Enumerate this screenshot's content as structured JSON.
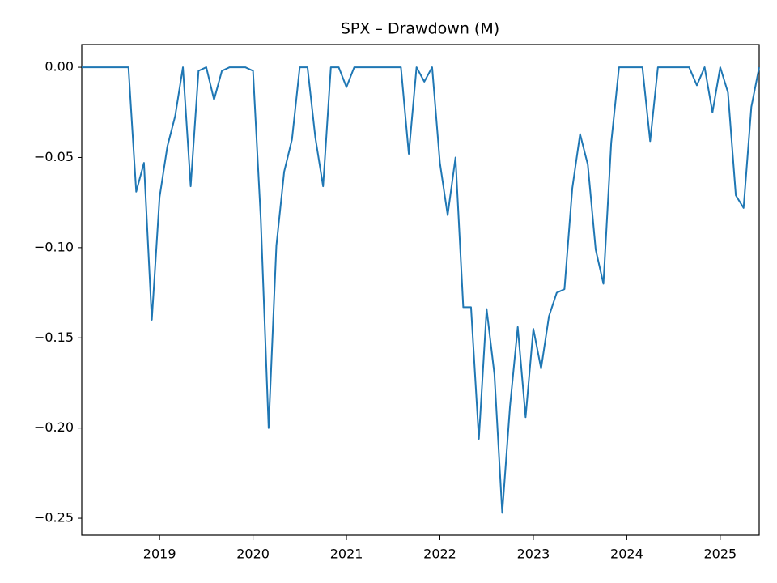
{
  "chart_data": {
    "type": "line",
    "title": "SPX – Drawdown (M)",
    "x": [
      2018.167,
      2018.25,
      2018.333,
      2018.417,
      2018.5,
      2018.583,
      2018.667,
      2018.75,
      2018.833,
      2018.917,
      2019,
      2019.083,
      2019.167,
      2019.25,
      2019.333,
      2019.417,
      2019.5,
      2019.583,
      2019.667,
      2019.75,
      2019.833,
      2019.917,
      2020,
      2020.083,
      2020.167,
      2020.25,
      2020.333,
      2020.417,
      2020.5,
      2020.583,
      2020.667,
      2020.75,
      2020.833,
      2020.917,
      2021,
      2021.083,
      2021.167,
      2021.25,
      2021.333,
      2021.417,
      2021.5,
      2021.583,
      2021.667,
      2021.75,
      2021.833,
      2021.917,
      2022,
      2022.083,
      2022.167,
      2022.25,
      2022.333,
      2022.417,
      2022.5,
      2022.583,
      2022.667,
      2022.75,
      2022.833,
      2022.917,
      2023,
      2023.083,
      2023.167,
      2023.25,
      2023.333,
      2023.417,
      2023.5,
      2023.583,
      2023.667,
      2023.75,
      2023.833,
      2023.917,
      2024,
      2024.083,
      2024.167,
      2024.25,
      2024.333,
      2024.417,
      2024.5,
      2024.583,
      2024.667,
      2024.75,
      2024.833,
      2024.917,
      2025,
      2025.083,
      2025.167,
      2025.25,
      2025.333,
      2025.417
    ],
    "series": [
      {
        "color": "#1f77b4",
        "values": [
          0,
          0,
          0,
          0,
          0,
          0,
          0,
          -0.069,
          -0.053,
          -0.14,
          -0.072,
          -0.044,
          -0.027,
          0,
          -0.066,
          -0.002,
          0,
          -0.018,
          -0.002,
          0,
          0,
          0,
          -0.002,
          -0.084,
          -0.2,
          -0.099,
          -0.058,
          -0.04,
          0,
          0,
          -0.039,
          -0.066,
          0,
          0,
          -0.011,
          0,
          0,
          0,
          0,
          0,
          0,
          0,
          -0.048,
          0,
          -0.008,
          0,
          -0.053,
          -0.082,
          -0.05,
          -0.133,
          -0.133,
          -0.206,
          -0.134,
          -0.17,
          -0.247,
          -0.188,
          -0.144,
          -0.194,
          -0.145,
          -0.167,
          -0.138,
          -0.125,
          -0.123,
          -0.067,
          -0.037,
          -0.054,
          -0.101,
          -0.12,
          -0.042,
          0,
          0,
          0,
          0,
          -0.041,
          0,
          0,
          0,
          0,
          0,
          -0.01,
          0,
          -0.025,
          0,
          -0.014,
          -0.071,
          -0.078,
          -0.022,
          0
        ]
      }
    ],
    "xlim": [
      2018.167,
      2025.417
    ],
    "xticks": [
      2019,
      2020,
      2021,
      2022,
      2023,
      2024,
      2025
    ],
    "ylim": [
      -0.2594,
      0.0126
    ],
    "yticks": [
      {
        "value": 0,
        "label": "0.00"
      },
      {
        "value": -0.05,
        "label": "−0.05"
      },
      {
        "value": -0.1,
        "label": "−0.10"
      },
      {
        "value": -0.15,
        "label": "−0.15"
      },
      {
        "value": -0.2,
        "label": "−0.20"
      },
      {
        "value": -0.25,
        "label": "−0.25"
      }
    ]
  }
}
